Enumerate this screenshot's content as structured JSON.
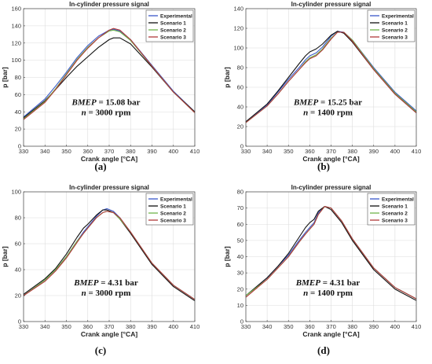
{
  "colors": {
    "Experimental": "#3a57c8",
    "Scenario 1": "#111111",
    "Scenario 2": "#6fb54b",
    "Scenario 3": "#b03a3a"
  },
  "chart_data": [
    {
      "type": "line",
      "panel": "(a)",
      "title": "In-cylinder pressure signal",
      "xlabel": "Crank angle [°CA]",
      "ylabel": "p [bar]",
      "xlim": [
        330,
        410
      ],
      "ylim": [
        0,
        160
      ],
      "xticks": [
        330,
        340,
        350,
        360,
        370,
        380,
        390,
        400,
        410
      ],
      "yticks": [
        0,
        20,
        40,
        60,
        80,
        100,
        120,
        140,
        160
      ],
      "grid": true,
      "legend": "top-right",
      "annotation": {
        "bmep_label": "BMEP",
        "bmep_value": " = 15.08 bar",
        "n_label": "n",
        "n_value": " = 3000 rpm"
      },
      "x": [
        330,
        340,
        345,
        350,
        355,
        360,
        365,
        370,
        372,
        375,
        380,
        390,
        400,
        410
      ],
      "series": [
        {
          "name": "Experimental",
          "values": [
            34,
            55,
            70,
            86,
            103,
            117,
            128,
            135,
            136,
            134,
            124,
            94,
            64,
            40
          ]
        },
        {
          "name": "Scenario 1",
          "values": [
            33,
            53,
            66,
            80,
            93,
            104,
            115,
            124,
            126,
            126,
            119,
            92,
            63,
            40
          ]
        },
        {
          "name": "Scenario 2",
          "values": [
            32,
            52,
            67,
            84,
            101,
            115,
            126,
            134,
            135,
            133,
            123,
            93,
            63,
            39
          ]
        },
        {
          "name": "Scenario 3",
          "values": [
            31,
            51,
            66,
            83,
            100,
            114,
            126,
            135,
            137,
            135,
            124,
            93,
            63,
            39
          ]
        }
      ]
    },
    {
      "type": "line",
      "panel": "(b)",
      "title": "In-cylinder pressure signal",
      "xlabel": "Crank angle [°CA]",
      "ylabel": "p [bar]",
      "xlim": [
        330,
        410
      ],
      "ylim": [
        0,
        140
      ],
      "xticks": [
        330,
        340,
        350,
        360,
        370,
        380,
        390,
        400,
        410
      ],
      "yticks": [
        0,
        20,
        40,
        60,
        80,
        100,
        120,
        140
      ],
      "grid": true,
      "legend": "top-right",
      "annotation": {
        "bmep_label": "BMEP",
        "bmep_value": " = 15.25 bar",
        "n_label": "n",
        "n_value": " = 1400 rpm"
      },
      "x": [
        330,
        340,
        345,
        350,
        355,
        358,
        360,
        363,
        366,
        370,
        373,
        376,
        380,
        390,
        400,
        410
      ],
      "series": [
        {
          "name": "Experimental",
          "values": [
            25,
            42,
            55,
            68,
            80,
            88,
            92,
            95,
            101,
            112,
            117,
            116,
            108,
            80,
            55,
            36
          ]
        },
        {
          "name": "Scenario 1",
          "values": [
            25,
            43,
            56,
            70,
            84,
            92,
            96,
            99,
            104,
            113,
            117,
            115,
            106,
            78,
            53,
            34
          ]
        },
        {
          "name": "Scenario 2",
          "values": [
            24,
            41,
            53,
            66,
            78,
            86,
            90,
            93,
            99,
            110,
            116,
            116,
            108,
            79,
            54,
            35
          ]
        },
        {
          "name": "Scenario 3",
          "values": [
            24,
            41,
            53,
            66,
            78,
            85,
            89,
            92,
            98,
            109,
            116,
            116,
            107,
            78,
            53,
            34
          ]
        }
      ]
    },
    {
      "type": "line",
      "panel": "(c)",
      "title": "In-cylinder pressure signal",
      "xlabel": "Crank angle [°CA]",
      "ylabel": "p [bar]",
      "xlim": [
        330,
        410
      ],
      "ylim": [
        0,
        100
      ],
      "xticks": [
        330,
        340,
        350,
        360,
        370,
        380,
        390,
        400,
        410
      ],
      "yticks": [
        0,
        20,
        40,
        60,
        80,
        100
      ],
      "grid": true,
      "legend": "top-right",
      "annotation": {
        "bmep_label": "BMEP",
        "bmep_value": " = 4.31 bar",
        "n_label": "n",
        "n_value": " = 3000 rpm"
      },
      "x": [
        330,
        340,
        345,
        350,
        355,
        358,
        360,
        364,
        367,
        369,
        372,
        375,
        380,
        390,
        400,
        410
      ],
      "series": [
        {
          "name": "Experimental",
          "values": [
            20,
            32,
            40,
            50,
            62,
            69,
            73,
            81,
            86,
            87,
            85,
            80,
            69,
            45,
            28,
            17
          ]
        },
        {
          "name": "Scenario 1",
          "values": [
            21,
            33,
            41,
            52,
            65,
            72,
            75,
            82,
            86,
            86,
            84,
            79,
            68,
            44,
            27,
            16
          ]
        },
        {
          "name": "Scenario 2",
          "values": [
            20,
            32,
            40,
            50,
            62,
            68,
            72,
            80,
            84,
            85,
            84,
            79,
            69,
            45,
            28,
            17
          ]
        },
        {
          "name": "Scenario 3",
          "values": [
            20,
            31,
            39,
            49,
            61,
            68,
            72,
            80,
            84,
            85,
            84,
            80,
            69,
            45,
            28,
            17
          ]
        }
      ]
    },
    {
      "type": "line",
      "panel": "(d)",
      "title": "In-cylinder pressure signal",
      "xlabel": "Crank angle [°CA]",
      "ylabel": "p [bar]",
      "xlim": [
        330,
        410
      ],
      "ylim": [
        0,
        80
      ],
      "xticks": [
        330,
        340,
        350,
        360,
        370,
        380,
        390,
        400,
        410
      ],
      "yticks": [
        0,
        10,
        20,
        30,
        40,
        50,
        60,
        70,
        80
      ],
      "grid": true,
      "legend": "top-right",
      "annotation": {
        "bmep_label": "BMEP",
        "bmep_value": " = 4.31 bar",
        "n_label": "n",
        "n_value": " = 1400 rpm"
      },
      "x": [
        330,
        340,
        345,
        350,
        355,
        358,
        360,
        362,
        364,
        367,
        370,
        375,
        380,
        390,
        400,
        410
      ],
      "series": [
        {
          "name": "Experimental",
          "values": [
            16,
            27,
            34,
            41,
            50,
            55,
            58,
            61,
            67,
            71,
            70,
            62,
            51,
            33,
            21,
            14
          ]
        },
        {
          "name": "Scenario 1",
          "values": [
            16,
            27,
            34,
            42,
            52,
            58,
            61,
            63,
            68,
            71,
            69,
            61,
            50,
            32,
            20,
            13
          ]
        },
        {
          "name": "Scenario 2",
          "values": [
            16,
            26,
            33,
            40,
            49,
            54,
            57,
            60,
            66,
            71,
            70,
            62,
            51,
            33,
            21,
            14
          ]
        },
        {
          "name": "Scenario 3",
          "values": [
            15,
            26,
            33,
            40,
            49,
            54,
            57,
            60,
            66,
            71,
            70,
            62,
            51,
            33,
            21,
            14
          ]
        }
      ]
    }
  ]
}
